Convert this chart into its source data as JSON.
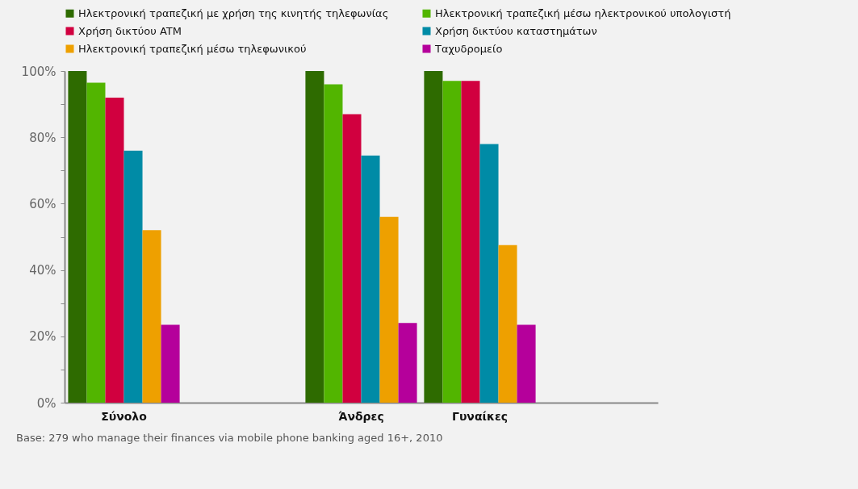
{
  "chart_data": {
    "type": "bar",
    "categories": [
      "Σύνολο",
      null,
      "Άνδρες",
      "Γυναίκες",
      null
    ],
    "series": [
      {
        "name": "Ηλεκτρονική τραπεζική με χρήση της κινητής τηλεφωνίας",
        "color": "#2e6b00",
        "values": [
          100,
          null,
          100,
          100,
          null
        ]
      },
      {
        "name": "Ηλεκτρονική τραπεζική μέσω ηλεκτρονικού υπολογιστή",
        "color": "#52b500",
        "values": [
          96.5,
          null,
          96,
          97,
          null
        ]
      },
      {
        "name": "Χρήση δικτύου ATM",
        "color": "#d1003f",
        "values": [
          92,
          null,
          87,
          97,
          null
        ]
      },
      {
        "name": "Χρήση δικτύου καταστημάτων",
        "color": "#008ba6",
        "values": [
          76,
          null,
          74.5,
          78,
          null
        ]
      },
      {
        "name": "Ηλεκτρονική τραπεζική μέσω τηλεφωνικού",
        "color": "#eea000",
        "values": [
          52,
          null,
          56,
          47.5,
          null
        ]
      },
      {
        "name": "Ταχυδρομείο",
        "color": "#b5009b",
        "values": [
          23.5,
          null,
          24,
          23.5,
          null
        ]
      }
    ],
    "ylim": [
      0,
      100
    ],
    "yticks": [
      {
        "value": 0,
        "label": "0%"
      },
      {
        "value": 10,
        "label": null
      },
      {
        "value": 20,
        "label": "20%"
      },
      {
        "value": 30,
        "label": null
      },
      {
        "value": 40,
        "label": "40%"
      },
      {
        "value": 50,
        "label": null
      },
      {
        "value": 60,
        "label": "60%"
      },
      {
        "value": 70,
        "label": null
      },
      {
        "value": 80,
        "label": "80%"
      },
      {
        "value": 90,
        "label": null
      },
      {
        "value": 100,
        "label": "100%"
      }
    ],
    "grid": false,
    "legend": "top",
    "annotations": [
      "Base: 279 who manage their finances via mobile phone banking aged 16+, 2010"
    ]
  }
}
